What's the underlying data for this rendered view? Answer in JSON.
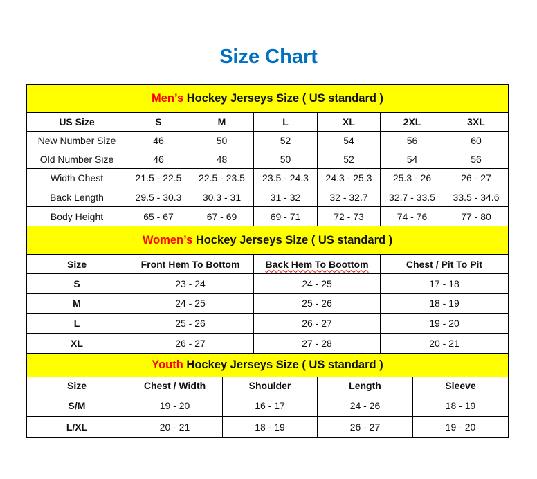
{
  "title": "Size Chart",
  "colors": {
    "title": "#0070c0",
    "header_bg": "#ffff00",
    "accent": "#ff0000"
  },
  "men": {
    "heading_accent": "Men’s",
    "heading_rest": " Hockey Jerseys Size ( US standard )",
    "columns": [
      "US Size",
      "S",
      "M",
      "L",
      "XL",
      "2XL",
      "3XL"
    ],
    "rows": [
      [
        "New Number Size",
        "46",
        "50",
        "52",
        "54",
        "56",
        "60"
      ],
      [
        "Old Number Size",
        "46",
        "48",
        "50",
        "52",
        "54",
        "56"
      ],
      [
        "Width Chest",
        "21.5 - 22.5",
        "22.5 - 23.5",
        "23.5 - 24.3",
        "24.3 - 25.3",
        "25.3 - 26",
        "26 - 27"
      ],
      [
        "Back Length",
        "29.5 - 30.3",
        "30.3 - 31",
        "31 - 32",
        "32 - 32.7",
        "32.7 - 33.5",
        "33.5 - 34.6"
      ],
      [
        "Body Height",
        "65 - 67",
        "67 - 69",
        "69 - 71",
        "72 - 73",
        "74 - 76",
        "77 - 80"
      ]
    ]
  },
  "women": {
    "heading_accent": "Women’s",
    "heading_rest": " Hockey Jerseys Size ( US standard )",
    "columns": [
      "Size",
      "Front Hem To Bottom",
      "Back Hem To Boottom",
      "Chest / Pit To Pit"
    ],
    "rows": [
      [
        "S",
        "23 - 24",
        "24 - 25",
        "17 - 18"
      ],
      [
        "M",
        "24 - 25",
        "25 - 26",
        "18 - 19"
      ],
      [
        "L",
        "25 - 26",
        "26 - 27",
        "19 - 20"
      ],
      [
        "XL",
        "26 - 27",
        "27 - 28",
        "20 - 21"
      ]
    ]
  },
  "youth": {
    "heading_accent": "Youth",
    "heading_rest": " Hockey Jerseys Size ( US standard )",
    "columns": [
      "Size",
      "Chest / Width",
      "Shoulder",
      "Length",
      "Sleeve"
    ],
    "rows": [
      [
        "S/M",
        "19 - 20",
        "16 - 17",
        "24 - 26",
        "18 - 19"
      ],
      [
        "L/XL",
        "20 - 21",
        "18 - 19",
        "26 - 27",
        "19 - 20"
      ]
    ]
  }
}
